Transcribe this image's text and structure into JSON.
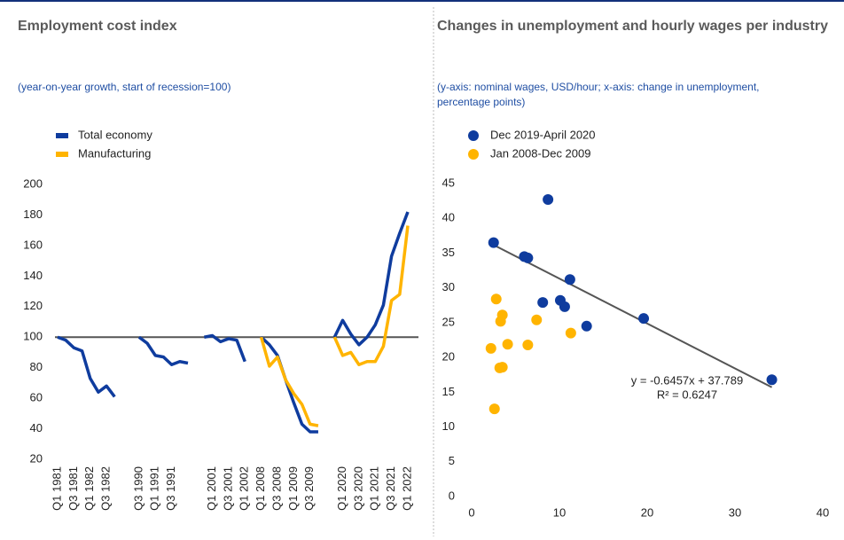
{
  "chart_data": [
    {
      "type": "line",
      "title": "Employment cost index",
      "subtitle": "(year-on-year growth, start of recession=100)",
      "categories": [
        "Q1 1981",
        null,
        "Q3 1981",
        null,
        "Q1 1982",
        null,
        "Q3 1982",
        null,
        null,
        null,
        "Q3 1990",
        null,
        "Q1 1991",
        null,
        "Q3 1991",
        null,
        null,
        null,
        null,
        "Q1 2001",
        null,
        "Q3 2001",
        null,
        "Q1 2002",
        null,
        "Q1 2008",
        null,
        "Q3 2008",
        null,
        "Q1 2009",
        null,
        "Q3 2009",
        null,
        null,
        null,
        "Q1 2020",
        null,
        "Q3 2020",
        null,
        "Q1 2021",
        null,
        "Q3 2021",
        null,
        "Q1 2022"
      ],
      "series": [
        {
          "name": "Total economy",
          "color": "#0f3c9e",
          "values": [
            100,
            98,
            93,
            91,
            73,
            64,
            68,
            61,
            null,
            null,
            100,
            96,
            88,
            87,
            82,
            84,
            83,
            null,
            100,
            101,
            97,
            99,
            98,
            84,
            null,
            100,
            95,
            88,
            72,
            57,
            43,
            38,
            38,
            null,
            100,
            111,
            102,
            95,
            100,
            108,
            121,
            153,
            168,
            182
          ]
        },
        {
          "name": "Manufacturing",
          "color": "#ffb400",
          "values": [
            null,
            null,
            null,
            null,
            null,
            null,
            null,
            null,
            null,
            null,
            null,
            null,
            null,
            null,
            null,
            null,
            null,
            null,
            null,
            null,
            null,
            null,
            null,
            null,
            null,
            100,
            81,
            87,
            72,
            63,
            56,
            43,
            42,
            null,
            100,
            88,
            90,
            82,
            84,
            84,
            94,
            124,
            128,
            173
          ]
        }
      ],
      "reference_line": 100,
      "ylim": [
        20,
        200
      ],
      "yticks": [
        20,
        40,
        60,
        80,
        100,
        120,
        140,
        160,
        180,
        200
      ]
    },
    {
      "type": "scatter",
      "title": "Changes in unemployment and hourly wages per industry",
      "subtitle": "(y-axis: nominal wages, USD/hour; x-axis: change in unemployment, percentage points)",
      "series": [
        {
          "name": "Dec 2019-April 2020",
          "color": "#0f3c9e",
          "x": [
            2.5,
            6.0,
            6.4,
            8.7,
            8.1,
            10.1,
            10.6,
            11.2,
            13.1,
            19.6,
            34.2
          ],
          "values": [
            36.5,
            34.5,
            34.3,
            42.7,
            27.9,
            28.2,
            27.3,
            31.2,
            24.5,
            25.6,
            16.8
          ]
        },
        {
          "name": "Jan 2008-Dec 2009",
          "color": "#ffb400",
          "x": [
            2.8,
            2.2,
            3.2,
            3.5,
            3.5,
            3.3,
            4.1,
            2.6,
            6.4,
            7.4,
            11.3
          ],
          "values": [
            28.4,
            21.3,
            18.5,
            18.6,
            26.1,
            25.2,
            21.9,
            12.6,
            21.8,
            25.4,
            23.5
          ]
        }
      ],
      "trendline": {
        "slope": -0.6457,
        "intercept": 37.789,
        "x_range": [
          2.8,
          34.2
        ]
      },
      "annotations": [
        "y = -0.6457x + 37.789",
        "R² = 0.6247"
      ],
      "xlim": [
        0,
        40
      ],
      "xticks": [
        0,
        10,
        20,
        30,
        40
      ],
      "ylim": [
        0,
        45
      ],
      "yticks": [
        0,
        5,
        10,
        15,
        20,
        25,
        30,
        35,
        40,
        45
      ]
    }
  ]
}
